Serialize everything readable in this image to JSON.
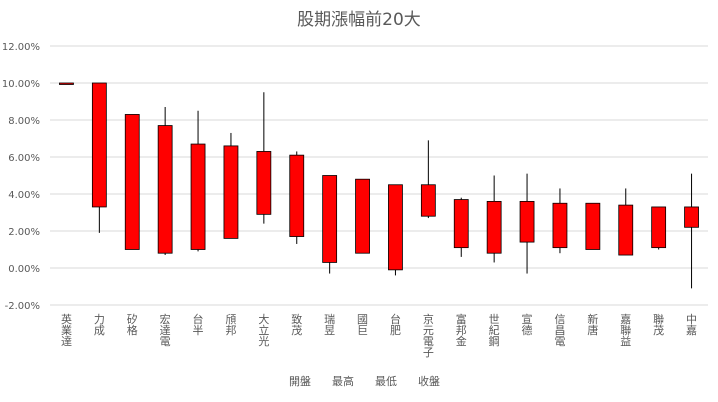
{
  "chart_data": {
    "type": "candlestick",
    "title": "股期漲幅前20大",
    "xlabel": "",
    "ylabel": "",
    "ylim": [
      -2,
      12
    ],
    "yticks": [
      -2,
      0,
      2,
      4,
      6,
      8,
      10,
      12
    ],
    "ytick_labels": [
      "-2.00%",
      "0.00%",
      "2.00%",
      "4.00%",
      "6.00%",
      "8.00%",
      "10.00%",
      "12.00%"
    ],
    "grid": true,
    "legend_position": "bottom",
    "legend_labels": [
      "開盤",
      "最高",
      "最低",
      "收盤"
    ],
    "colors": {
      "body": "#ff0000",
      "body_border": "#000000",
      "wick": "#000000",
      "grid": "#d9d9d9",
      "text": "#595959"
    },
    "categories": [
      "英業達",
      "力成",
      "矽格",
      "宏達電",
      "台半",
      "頎邦",
      "大立光",
      "致茂",
      "瑞昱",
      "國巨",
      "台肥",
      "京元電子",
      "富邦金",
      "世紀鋼",
      "宣德",
      "信昌電",
      "新唐",
      "嘉聯益",
      "聯茂",
      "中嘉"
    ],
    "series": [
      {
        "name": "開盤",
        "values": [
          10.0,
          3.3,
          1.0,
          0.8,
          1.0,
          1.6,
          2.9,
          1.7,
          0.3,
          0.8,
          -0.1,
          2.8,
          1.1,
          0.8,
          1.4,
          1.1,
          1.0,
          0.7,
          1.1,
          2.2
        ]
      },
      {
        "name": "最高",
        "values": [
          10.0,
          10.0,
          8.3,
          8.7,
          8.5,
          7.3,
          9.5,
          6.3,
          5.0,
          4.8,
          4.5,
          6.9,
          3.8,
          5.0,
          5.1,
          4.3,
          3.5,
          4.3,
          3.3,
          5.1
        ]
      },
      {
        "name": "最低",
        "values": [
          10.0,
          1.9,
          1.0,
          0.7,
          0.9,
          1.6,
          2.4,
          1.3,
          -0.3,
          0.8,
          -0.4,
          2.7,
          0.6,
          0.3,
          -0.3,
          0.8,
          1.0,
          0.7,
          1.0,
          -1.1
        ]
      },
      {
        "name": "收盤",
        "values": [
          10.0,
          10.0,
          8.3,
          7.7,
          6.7,
          6.6,
          6.3,
          6.1,
          5.0,
          4.8,
          4.5,
          4.5,
          3.7,
          3.6,
          3.6,
          3.5,
          3.5,
          3.4,
          3.3,
          3.3
        ]
      }
    ]
  }
}
